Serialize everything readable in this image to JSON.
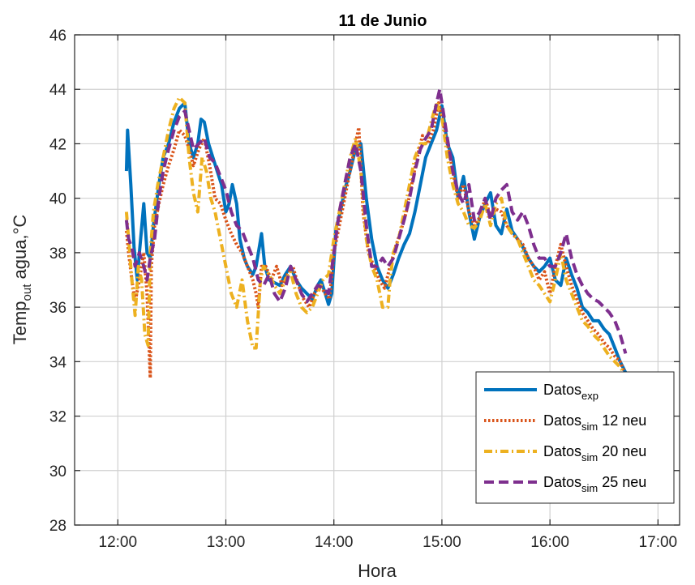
{
  "chart_data": {
    "type": "line",
    "title": "11 de Junio",
    "xlabel": "Hora",
    "ylabel": "Temp",
    "ylabel_sub": "out",
    "ylabel_suffix": " agua,°C",
    "xlim": [
      11.6,
      17.2
    ],
    "ylim": [
      28,
      46
    ],
    "xticks": [
      12,
      13,
      14,
      15,
      16,
      17
    ],
    "xtick_labels": [
      "12:00",
      "13:00",
      "14:00",
      "15:00",
      "16:00",
      "17:00"
    ],
    "yticks": [
      28,
      30,
      32,
      34,
      36,
      38,
      40,
      42,
      44,
      46
    ],
    "ytick_labels": [
      "28",
      "30",
      "32",
      "34",
      "36",
      "38",
      "40",
      "42",
      "44",
      "46"
    ],
    "grid": true,
    "legend_position": "bottom-right",
    "series": [
      {
        "name": "Datos",
        "name_sub": "exp",
        "name_suffix": "",
        "color": "#0072BD",
        "dash": "solid",
        "x": [
          12.08,
          12.09,
          12.12,
          12.15,
          12.18,
          12.2,
          12.24,
          12.27,
          12.3,
          12.33,
          12.38,
          12.42,
          12.47,
          12.52,
          12.57,
          12.62,
          12.66,
          12.7,
          12.74,
          12.77,
          12.8,
          12.84,
          12.88,
          12.92,
          12.96,
          12.98,
          13.0,
          13.03,
          13.06,
          13.1,
          13.13,
          13.17,
          13.2,
          13.25,
          13.28,
          13.33,
          13.36,
          13.4,
          13.45,
          13.5,
          13.55,
          13.6,
          13.65,
          13.7,
          13.75,
          13.8,
          13.85,
          13.88,
          13.92,
          13.95,
          13.98,
          14.02,
          14.06,
          14.1,
          14.15,
          14.2,
          14.25,
          14.3,
          14.35,
          14.4,
          14.45,
          14.5,
          14.55,
          14.6,
          14.65,
          14.7,
          14.75,
          14.8,
          14.85,
          14.9,
          14.95,
          15.0,
          15.05,
          15.1,
          15.15,
          15.2,
          15.25,
          15.3,
          15.35,
          15.4,
          15.45,
          15.5,
          15.55,
          15.6,
          15.65,
          15.7,
          15.75,
          15.8,
          15.85,
          15.9,
          15.95,
          16.0,
          16.05,
          16.1,
          16.15,
          16.2,
          16.25,
          16.3,
          16.35,
          16.4,
          16.45,
          16.5,
          16.55,
          16.6,
          16.65,
          16.7,
          16.73
        ],
        "y": [
          41.0,
          42.5,
          40.5,
          38.2,
          37.0,
          38.0,
          39.8,
          38.0,
          37.8,
          39.0,
          40.5,
          41.5,
          42.0,
          42.8,
          43.3,
          43.5,
          42.0,
          41.5,
          42.0,
          42.9,
          42.8,
          42.0,
          41.5,
          41.0,
          40.5,
          40.0,
          39.5,
          39.8,
          40.5,
          39.8,
          38.5,
          37.8,
          37.5,
          37.2,
          37.5,
          38.7,
          37.5,
          37.0,
          36.9,
          36.8,
          37.2,
          37.5,
          37.0,
          36.7,
          36.5,
          36.3,
          36.8,
          37.0,
          36.5,
          36.1,
          36.5,
          38.9,
          39.5,
          40.3,
          41.0,
          41.8,
          42.0,
          40.0,
          38.5,
          37.5,
          37.0,
          36.7,
          37.2,
          37.8,
          38.3,
          38.7,
          39.5,
          40.5,
          41.5,
          42.0,
          42.5,
          43.4,
          42.0,
          41.5,
          40.0,
          40.8,
          39.5,
          38.5,
          39.3,
          39.8,
          40.2,
          39.0,
          38.7,
          39.6,
          38.8,
          38.5,
          38.2,
          37.8,
          37.5,
          37.3,
          37.5,
          37.8,
          37.0,
          36.8,
          37.8,
          37.2,
          36.7,
          36.0,
          35.8,
          35.5,
          35.5,
          35.2,
          35.0,
          34.5,
          34.0,
          33.6,
          33.3
        ]
      },
      {
        "name": "Datos",
        "name_sub": "sim",
        "name_suffix": " 12 neu",
        "color": "#D95319",
        "dash": "dotted",
        "x": [
          12.08,
          12.1,
          12.13,
          12.16,
          12.2,
          12.24,
          12.27,
          12.3,
          12.31,
          12.34,
          12.38,
          12.42,
          12.47,
          12.52,
          12.57,
          12.62,
          12.66,
          12.7,
          12.75,
          12.8,
          12.85,
          12.9,
          12.95,
          13.0,
          13.05,
          13.1,
          13.15,
          13.2,
          13.25,
          13.28,
          13.3,
          13.33,
          13.37,
          13.42,
          13.47,
          13.52,
          13.57,
          13.62,
          13.67,
          13.72,
          13.77,
          13.82,
          13.87,
          13.92,
          13.96,
          14.0,
          14.05,
          14.1,
          14.15,
          14.2,
          14.23,
          14.27,
          14.32,
          14.37,
          14.42,
          14.47,
          14.52,
          14.57,
          14.62,
          14.67,
          14.72,
          14.77,
          14.82,
          14.87,
          14.92,
          14.97,
          15.0,
          15.05,
          15.1,
          15.15,
          15.2,
          15.25,
          15.3,
          15.35,
          15.4,
          15.45,
          15.5,
          15.55,
          15.6,
          15.65,
          15.7,
          15.75,
          15.8,
          15.85,
          15.9,
          15.95,
          16.0,
          16.05,
          16.1,
          16.15,
          16.2,
          16.25,
          16.3,
          16.35,
          16.4,
          16.45,
          16.5,
          16.55,
          16.6,
          16.65,
          16.7
        ],
        "y": [
          38.8,
          38.0,
          37.0,
          36.2,
          37.0,
          38.0,
          36.5,
          33.4,
          37.5,
          39.0,
          39.8,
          40.5,
          41.2,
          41.8,
          42.5,
          42.3,
          41.8,
          41.2,
          41.8,
          42.2,
          41.2,
          40.0,
          39.8,
          39.2,
          38.7,
          38.3,
          38.0,
          37.5,
          37.0,
          36.5,
          36.0,
          37.5,
          37.5,
          37.0,
          37.5,
          36.8,
          37.2,
          37.5,
          36.8,
          36.3,
          36.0,
          36.5,
          36.8,
          36.5,
          36.3,
          38.0,
          39.0,
          40.0,
          41.0,
          42.0,
          42.6,
          39.5,
          38.0,
          37.5,
          37.0,
          36.7,
          37.5,
          38.2,
          38.8,
          39.5,
          40.5,
          41.5,
          42.3,
          42.0,
          42.5,
          43.5,
          43.0,
          42.0,
          41.0,
          40.0,
          40.5,
          39.5,
          39.0,
          39.3,
          40.0,
          39.3,
          39.6,
          39.5,
          39.0,
          38.7,
          38.5,
          38.3,
          37.8,
          37.5,
          37.0,
          37.3,
          36.5,
          37.5,
          38.3,
          37.5,
          36.8,
          36.3,
          35.8,
          35.5,
          35.2,
          35.0,
          34.7,
          34.5,
          34.2,
          34.0,
          33.5
        ]
      },
      {
        "name": "Datos",
        "name_sub": "sim",
        "name_suffix": " 20 neu",
        "color": "#EDB120",
        "dash": "dashdot",
        "x": [
          12.08,
          12.1,
          12.13,
          12.16,
          12.19,
          12.22,
          12.25,
          12.28,
          12.3,
          12.33,
          12.37,
          12.42,
          12.47,
          12.52,
          12.57,
          12.62,
          12.66,
          12.7,
          12.74,
          12.78,
          12.82,
          12.86,
          12.9,
          12.95,
          13.0,
          13.05,
          13.1,
          13.15,
          13.2,
          13.25,
          13.28,
          13.32,
          13.35,
          13.4,
          13.45,
          13.5,
          13.55,
          13.6,
          13.65,
          13.7,
          13.75,
          13.8,
          13.85,
          13.9,
          13.95,
          14.0,
          14.05,
          14.1,
          14.15,
          14.2,
          14.25,
          14.3,
          14.35,
          14.4,
          14.45,
          14.5,
          14.52,
          14.55,
          14.6,
          14.65,
          14.7,
          14.75,
          14.8,
          14.85,
          14.9,
          14.95,
          15.0,
          15.05,
          15.1,
          15.15,
          15.2,
          15.25,
          15.3,
          15.35,
          15.4,
          15.45,
          15.5,
          15.55,
          15.6,
          15.65,
          15.7,
          15.75,
          15.8,
          15.85,
          15.9,
          15.95,
          16.0,
          16.05,
          16.1,
          16.15,
          16.2,
          16.25,
          16.3,
          16.35,
          16.4,
          16.45,
          16.5,
          16.55,
          16.6,
          16.65,
          16.7
        ],
        "y": [
          39.5,
          38.5,
          37.0,
          35.7,
          37.5,
          37.0,
          35.0,
          34.6,
          38.0,
          39.5,
          40.5,
          41.5,
          42.5,
          43.3,
          43.7,
          43.5,
          41.5,
          40.2,
          39.5,
          41.5,
          41.0,
          40.0,
          39.5,
          38.5,
          37.5,
          36.5,
          36.0,
          37.0,
          35.5,
          34.5,
          34.5,
          37.0,
          37.5,
          37.2,
          36.8,
          36.5,
          37.0,
          37.3,
          36.5,
          36.0,
          35.8,
          36.0,
          36.5,
          37.0,
          37.2,
          38.5,
          39.5,
          40.5,
          41.5,
          42.2,
          41.0,
          38.5,
          37.5,
          37.0,
          36.0,
          36.0,
          37.0,
          38.0,
          38.5,
          39.5,
          40.5,
          41.5,
          42.0,
          42.0,
          42.8,
          43.5,
          43.0,
          41.5,
          40.5,
          39.8,
          39.5,
          39.0,
          38.9,
          39.2,
          39.8,
          39.0,
          39.8,
          40.0,
          39.0,
          38.7,
          38.5,
          38.0,
          37.5,
          37.0,
          36.8,
          36.5,
          36.2,
          37.0,
          38.0,
          37.0,
          36.5,
          36.0,
          35.5,
          35.3,
          35.0,
          34.8,
          34.5,
          34.2,
          34.0,
          33.8,
          33.5
        ]
      },
      {
        "name": "Datos",
        "name_sub": "sim",
        "name_suffix": " 25 neu",
        "color": "#7E2F8E",
        "dash": "dashed",
        "x": [
          12.08,
          12.1,
          12.13,
          12.16,
          12.2,
          12.24,
          12.27,
          12.3,
          12.34,
          12.38,
          12.42,
          12.47,
          12.52,
          12.57,
          12.62,
          12.66,
          12.7,
          12.75,
          12.8,
          12.85,
          12.9,
          12.95,
          13.0,
          13.05,
          13.1,
          13.15,
          13.2,
          13.25,
          13.3,
          13.35,
          13.4,
          13.45,
          13.5,
          13.55,
          13.6,
          13.65,
          13.7,
          13.75,
          13.8,
          13.85,
          13.9,
          13.95,
          14.0,
          14.05,
          14.1,
          14.15,
          14.2,
          14.25,
          14.3,
          14.35,
          14.4,
          14.45,
          14.5,
          14.55,
          14.6,
          14.65,
          14.7,
          14.75,
          14.8,
          14.85,
          14.9,
          14.95,
          14.98,
          15.0,
          15.05,
          15.1,
          15.15,
          15.2,
          15.25,
          15.3,
          15.35,
          15.4,
          15.45,
          15.5,
          15.55,
          15.6,
          15.65,
          15.7,
          15.75,
          15.8,
          15.85,
          15.9,
          15.95,
          16.0,
          16.05,
          16.1,
          16.15,
          16.2,
          16.25,
          16.3,
          16.35,
          16.4,
          16.45,
          16.5,
          16.55,
          16.6,
          16.65,
          16.7
        ],
        "y": [
          39.2,
          38.5,
          38.2,
          37.5,
          38.0,
          37.5,
          37.0,
          37.8,
          38.5,
          40.0,
          41.0,
          41.8,
          42.5,
          43.0,
          43.2,
          42.5,
          41.8,
          42.0,
          42.2,
          41.5,
          41.3,
          40.8,
          40.3,
          39.5,
          39.0,
          38.8,
          38.3,
          37.8,
          37.0,
          36.8,
          37.2,
          36.5,
          36.2,
          36.7,
          37.5,
          37.0,
          36.5,
          36.2,
          36.5,
          36.8,
          36.7,
          36.5,
          38.0,
          39.5,
          40.5,
          41.5,
          42.0,
          41.0,
          39.0,
          37.5,
          37.5,
          37.8,
          37.5,
          37.8,
          38.5,
          39.2,
          40.0,
          41.0,
          41.8,
          42.2,
          42.5,
          43.5,
          44.0,
          43.5,
          42.2,
          41.0,
          40.2,
          39.8,
          40.5,
          39.2,
          39.5,
          40.0,
          39.2,
          40.0,
          40.3,
          40.5,
          39.5,
          39.2,
          39.5,
          39.0,
          38.3,
          37.8,
          37.8,
          37.5,
          37.5,
          38.0,
          38.7,
          37.8,
          37.2,
          36.8,
          36.5,
          36.3,
          36.2,
          36.0,
          35.8,
          35.5,
          35.0,
          34.3
        ]
      }
    ]
  }
}
